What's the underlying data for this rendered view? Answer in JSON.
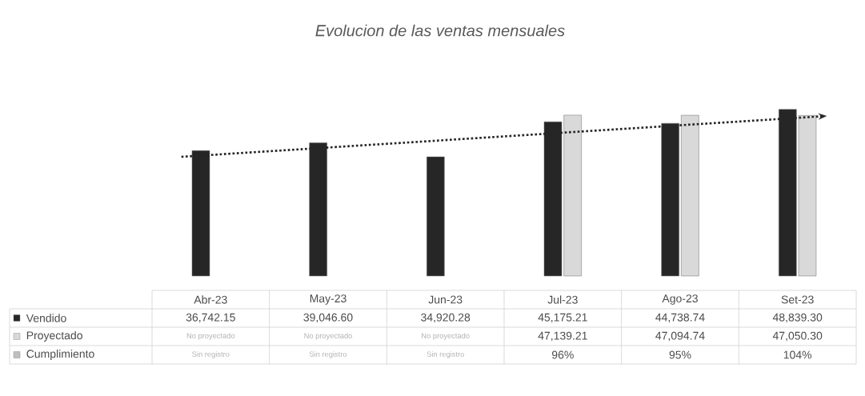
{
  "chart_data": {
    "type": "bar",
    "title": "Evolucion de las ventas mensuales",
    "categories": [
      "Abr-23",
      "May-23",
      "Jun-23",
      "Jul-23",
      "Ago-23",
      "Set-23"
    ],
    "series": [
      {
        "name": "Vendido",
        "color": "#262626",
        "values": [
          36742.15,
          39046.6,
          34920.28,
          45175.21,
          44738.74,
          48839.3
        ],
        "value_labels": [
          "36,742.15",
          "39,046.60",
          "34,920.28",
          "45,175.21",
          "44,738.74",
          "48,839.30"
        ]
      },
      {
        "name": "Proyectado",
        "color": "#d9d9d9",
        "values": [
          null,
          null,
          null,
          47139.21,
          47094.74,
          47050.3
        ],
        "value_labels": [
          "No proyectado",
          "No proyectado",
          "No proyectado",
          "47,139.21",
          "47,094.74",
          "47,050.30"
        ]
      },
      {
        "name": "Cumplimiento",
        "color": "#bfbfbf",
        "values": [
          null,
          null,
          null,
          null,
          null,
          null
        ],
        "value_labels": [
          "Sin registro",
          "Sin registro",
          "Sin registro",
          "96%",
          "95%",
          "104%"
        ]
      }
    ],
    "legend": "bottom left"
  }
}
